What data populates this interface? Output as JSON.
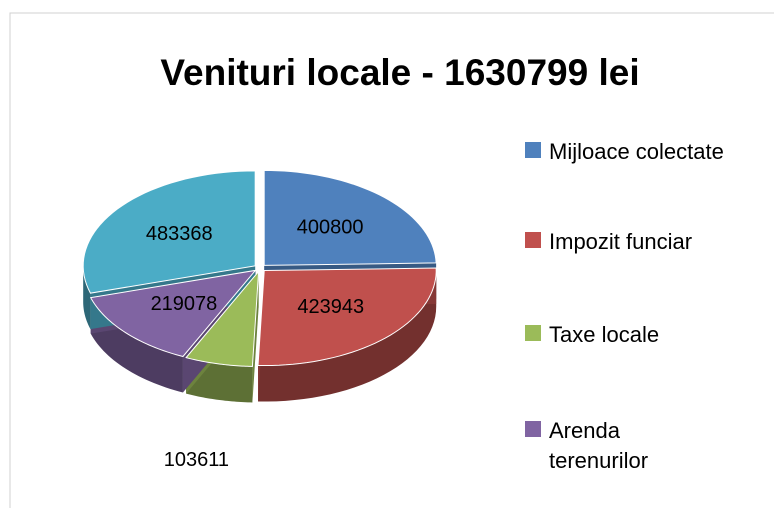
{
  "chart_data": {
    "type": "pie",
    "title": "Venituri locale - 1630799 lei",
    "categories": [
      "Mijloace colectate",
      "Impozit funciar",
      "Taxe locale",
      "Arenda terenurilor",
      null
    ],
    "values": [
      400800,
      423943,
      103611,
      219078,
      483368
    ],
    "colors": [
      "#4f81bd",
      "#c0504d",
      "#9bbb59",
      "#8064a2",
      "#4bacc6"
    ],
    "legend": "right"
  }
}
